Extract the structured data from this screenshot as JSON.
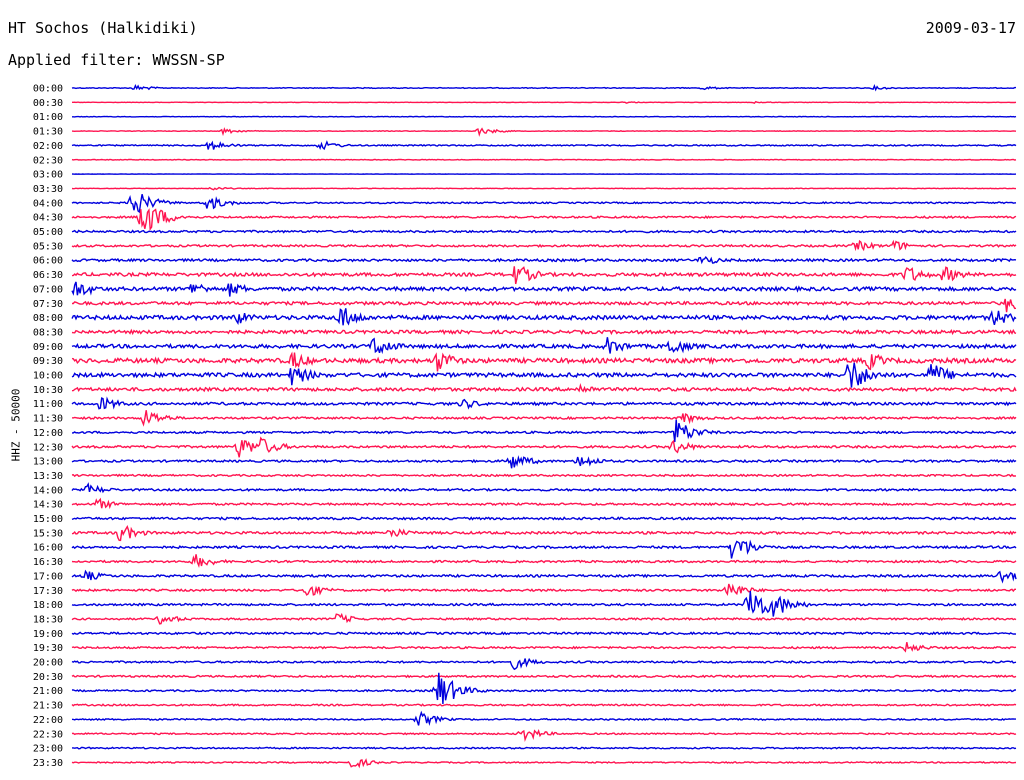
{
  "header": {
    "station": "HT Sochos (Halkidiki)",
    "date": "2009-03-17",
    "filter": "Applied filter: WWSSN-SP"
  },
  "axis": {
    "channel_label": "HHZ - 50000"
  },
  "colors": {
    "trace_a": "#0000dd",
    "trace_b": "#ff1450",
    "text": "#000000"
  },
  "chart_data": {
    "type": "line",
    "title": "HT Sochos (Halkidiki)",
    "subtitle": "Applied filter: WWSSN-SP",
    "ylabel": "HHZ - 50000",
    "xlabel": "",
    "row_labels": [
      "00:00",
      "00:30",
      "01:00",
      "01:30",
      "02:00",
      "02:30",
      "03:00",
      "03:30",
      "04:00",
      "04:30",
      "05:00",
      "05:30",
      "06:00",
      "06:30",
      "07:00",
      "07:30",
      "08:00",
      "08:30",
      "09:00",
      "09:30",
      "10:00",
      "10:30",
      "11:00",
      "11:30",
      "12:00",
      "12:30",
      "13:00",
      "13:30",
      "14:00",
      "14:30",
      "15:00",
      "15:30",
      "16:00",
      "16:30",
      "17:00",
      "17:30",
      "18:00",
      "18:30",
      "19:00",
      "19:30",
      "20:00",
      "20:30",
      "21:00",
      "21:30",
      "22:00",
      "22:30",
      "23:00",
      "23:30"
    ],
    "row_minutes": 30,
    "series_colors": [
      "#0000dd",
      "#ff1450"
    ],
    "noise_level": [
      0.4,
      0.2,
      0.25,
      0.3,
      0.6,
      0.3,
      0.15,
      0.3,
      0.7,
      0.9,
      1.0,
      1.0,
      1.2,
      1.6,
      1.8,
      1.5,
      2.0,
      1.6,
      1.8,
      2.2,
      2.0,
      1.6,
      1.3,
      1.0,
      1.0,
      1.1,
      1.0,
      0.9,
      1.0,
      1.0,
      1.1,
      1.2,
      1.1,
      1.0,
      1.1,
      1.0,
      1.0,
      0.9,
      1.0,
      0.9,
      0.9,
      0.9,
      0.8,
      0.8,
      0.7,
      0.7,
      0.7,
      0.6
    ],
    "events": [
      {
        "row": 0,
        "minute": 2.0,
        "amp": 3
      },
      {
        "row": 0,
        "minute": 20.0,
        "amp": 2
      },
      {
        "row": 0,
        "minute": 25.5,
        "amp": 2
      },
      {
        "row": 1,
        "minute": 17.5,
        "amp": 1
      },
      {
        "row": 1,
        "minute": 21.7,
        "amp": 1
      },
      {
        "row": 3,
        "minute": 4.8,
        "amp": 3
      },
      {
        "row": 3,
        "minute": 12.9,
        "amp": 4
      },
      {
        "row": 4,
        "minute": 4.3,
        "amp": 6
      },
      {
        "row": 4,
        "minute": 7.9,
        "amp": 5
      },
      {
        "row": 7,
        "minute": 4.4,
        "amp": 2
      },
      {
        "row": 8,
        "minute": 1.9,
        "amp": 16
      },
      {
        "row": 8,
        "minute": 4.3,
        "amp": 8
      },
      {
        "row": 9,
        "minute": 2.2,
        "amp": 22
      },
      {
        "row": 9,
        "minute": 2.5,
        "amp": 14
      },
      {
        "row": 11,
        "minute": 24.9,
        "amp": 6
      },
      {
        "row": 11,
        "minute": 26.1,
        "amp": 6
      },
      {
        "row": 12,
        "minute": 20.0,
        "amp": 6
      },
      {
        "row": 13,
        "minute": 14.1,
        "amp": 12
      },
      {
        "row": 13,
        "minute": 26.5,
        "amp": 10
      },
      {
        "row": 13,
        "minute": 27.7,
        "amp": 9
      },
      {
        "row": 14,
        "minute": 0.1,
        "amp": 10
      },
      {
        "row": 14,
        "minute": 3.8,
        "amp": 8
      },
      {
        "row": 14,
        "minute": 5.0,
        "amp": 8
      },
      {
        "row": 15,
        "minute": 29.7,
        "amp": 10
      },
      {
        "row": 16,
        "minute": 5.2,
        "amp": 8
      },
      {
        "row": 16,
        "minute": 8.5,
        "amp": 14
      },
      {
        "row": 16,
        "minute": 29.3,
        "amp": 10
      },
      {
        "row": 18,
        "minute": 9.6,
        "amp": 12
      },
      {
        "row": 18,
        "minute": 17.0,
        "amp": 10
      },
      {
        "row": 18,
        "minute": 19.0,
        "amp": 10
      },
      {
        "row": 19,
        "minute": 7.0,
        "amp": 10
      },
      {
        "row": 19,
        "minute": 11.6,
        "amp": 12
      },
      {
        "row": 19,
        "minute": 25.3,
        "amp": 10
      },
      {
        "row": 20,
        "minute": 7.0,
        "amp": 12
      },
      {
        "row": 20,
        "minute": 24.7,
        "amp": 20
      },
      {
        "row": 20,
        "minute": 27.3,
        "amp": 14
      },
      {
        "row": 21,
        "minute": 16.1,
        "amp": 6
      },
      {
        "row": 22,
        "minute": 0.9,
        "amp": 8
      },
      {
        "row": 22,
        "minute": 12.4,
        "amp": 6
      },
      {
        "row": 23,
        "minute": 2.3,
        "amp": 10
      },
      {
        "row": 23,
        "minute": 19.4,
        "amp": 6
      },
      {
        "row": 24,
        "minute": 19.2,
        "amp": 14
      },
      {
        "row": 25,
        "minute": 5.3,
        "amp": 12
      },
      {
        "row": 25,
        "minute": 6.0,
        "amp": 10
      },
      {
        "row": 25,
        "minute": 19.1,
        "amp": 8
      },
      {
        "row": 26,
        "minute": 13.9,
        "amp": 10
      },
      {
        "row": 26,
        "minute": 16.1,
        "amp": 8
      },
      {
        "row": 28,
        "minute": 0.5,
        "amp": 6
      },
      {
        "row": 29,
        "minute": 0.8,
        "amp": 6
      },
      {
        "row": 31,
        "minute": 1.5,
        "amp": 10
      },
      {
        "row": 31,
        "minute": 10.1,
        "amp": 6
      },
      {
        "row": 32,
        "minute": 21.0,
        "amp": 16
      },
      {
        "row": 33,
        "minute": 3.9,
        "amp": 8
      },
      {
        "row": 34,
        "minute": 0.4,
        "amp": 6
      },
      {
        "row": 34,
        "minute": 29.5,
        "amp": 8
      },
      {
        "row": 35,
        "minute": 7.4,
        "amp": 8
      },
      {
        "row": 35,
        "minute": 20.8,
        "amp": 10
      },
      {
        "row": 36,
        "minute": 21.5,
        "amp": 24
      },
      {
        "row": 36,
        "minute": 22.3,
        "amp": 14
      },
      {
        "row": 37,
        "minute": 2.8,
        "amp": 6
      },
      {
        "row": 37,
        "minute": 8.4,
        "amp": 6
      },
      {
        "row": 39,
        "minute": 26.5,
        "amp": 6
      },
      {
        "row": 40,
        "minute": 14.0,
        "amp": 8
      },
      {
        "row": 42,
        "minute": 11.6,
        "amp": 22
      },
      {
        "row": 44,
        "minute": 11.0,
        "amp": 8
      },
      {
        "row": 45,
        "minute": 14.3,
        "amp": 8
      },
      {
        "row": 47,
        "minute": 8.9,
        "amp": 6
      }
    ]
  }
}
